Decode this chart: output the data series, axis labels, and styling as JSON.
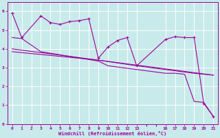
{
  "background_color": "#c8eaea",
  "grid_color": "#b0d8d8",
  "line_color": "#9b009b",
  "xlabel": "Windchill (Refroidissement éolien,°C)",
  "xlim": [
    -0.5,
    21.5
  ],
  "ylim": [
    0,
    6.5
  ],
  "xticks": [
    0,
    1,
    2,
    3,
    4,
    5,
    6,
    7,
    8,
    9,
    10,
    11,
    12,
    13,
    16,
    17,
    18,
    19,
    20,
    21
  ],
  "yticks": [
    0,
    1,
    2,
    3,
    4,
    5,
    6
  ],
  "series": [
    {
      "x": [
        0,
        1,
        3,
        4,
        5,
        6,
        7,
        8,
        9,
        10,
        11,
        12,
        13,
        16,
        17,
        18,
        19,
        20,
        21
      ],
      "y": [
        5.9,
        4.6,
        5.75,
        5.4,
        5.3,
        5.45,
        5.5,
        5.6,
        3.5,
        4.1,
        4.45,
        4.6,
        3.1,
        4.5,
        4.65,
        4.6,
        4.6,
        1.1,
        0.4
      ],
      "marker": true
    },
    {
      "x": [
        0,
        1,
        3,
        9,
        10,
        16,
        17,
        18,
        19,
        20,
        21
      ],
      "y": [
        4.6,
        4.55,
        3.85,
        3.35,
        3.1,
        2.7,
        2.7,
        2.65,
        1.2,
        1.15,
        0.4
      ],
      "marker": false
    },
    {
      "x": [
        0,
        21
      ],
      "y": [
        4.0,
        2.6
      ],
      "marker": false
    },
    {
      "x": [
        0,
        9,
        13,
        19,
        21
      ],
      "y": [
        3.85,
        3.4,
        3.1,
        2.7,
        2.6
      ],
      "marker": false
    }
  ]
}
